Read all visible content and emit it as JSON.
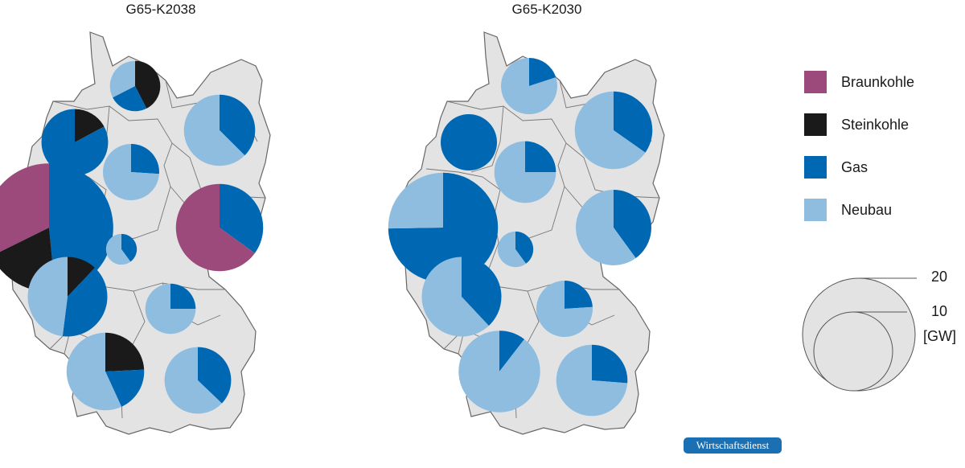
{
  "maps": [
    {
      "title": "G65-K2038",
      "pies": [
        {
          "region": "Schleswig-Holstein",
          "total": 4,
          "slices": [
            {
              "c": "Steinkohle",
              "v": 1.7
            },
            {
              "c": "Gas",
              "v": 1.0
            },
            {
              "c": "Neubau",
              "v": 1.3
            }
          ]
        },
        {
          "region": "Niedersachsen-Nord",
          "total": 7,
          "slices": [
            {
              "c": "Steinkohle",
              "v": 1.2
            },
            {
              "c": "Gas",
              "v": 5.8
            }
          ]
        },
        {
          "region": "Mecklenburg/Brandenburg-Nord",
          "total": 8,
          "slices": [
            {
              "c": "Gas",
              "v": 3.0
            },
            {
              "c": "Neubau",
              "v": 5.0
            }
          ]
        },
        {
          "region": "Niedersachsen-Süd",
          "total": 5,
          "slices": [
            {
              "c": "Gas",
              "v": 1.3
            },
            {
              "c": "Neubau",
              "v": 3.7
            }
          ]
        },
        {
          "region": "Nordrhein-Westfalen",
          "total": 26,
          "slices": [
            {
              "c": "Gas",
              "v": 12.6
            },
            {
              "c": "Steinkohle",
              "v": 5.0
            },
            {
              "c": "Braunkohle",
              "v": 8.4
            }
          ]
        },
        {
          "region": "Sachsen/Lausitz",
          "total": 12,
          "slices": [
            {
              "c": "Gas",
              "v": 4.2
            },
            {
              "c": "Braunkohle",
              "v": 7.8
            }
          ]
        },
        {
          "region": "Hessen",
          "total": 1.5,
          "slices": [
            {
              "c": "Gas",
              "v": 0.6
            },
            {
              "c": "Neubau",
              "v": 0.9
            }
          ]
        },
        {
          "region": "Rheinland-Pfalz/Saar",
          "total": 10,
          "slices": [
            {
              "c": "Steinkohle",
              "v": 1.2
            },
            {
              "c": "Gas",
              "v": 4.0
            },
            {
              "c": "Neubau",
              "v": 4.8
            }
          ]
        },
        {
          "region": "Franken",
          "total": 4,
          "slices": [
            {
              "c": "Gas",
              "v": 1.0
            },
            {
              "c": "Neubau",
              "v": 3.0
            }
          ]
        },
        {
          "region": "Baden-Württemberg",
          "total": 9.5,
          "slices": [
            {
              "c": "Steinkohle",
              "v": 2.3
            },
            {
              "c": "Gas",
              "v": 1.8
            },
            {
              "c": "Neubau",
              "v": 5.4
            }
          ]
        },
        {
          "region": "Bayern-Süd",
          "total": 7,
          "slices": [
            {
              "c": "Gas",
              "v": 2.6
            },
            {
              "c": "Neubau",
              "v": 4.4
            }
          ]
        }
      ]
    },
    {
      "title": "G65-K2030",
      "pies": [
        {
          "region": "Schleswig-Holstein",
          "total": 5,
          "slices": [
            {
              "c": "Gas",
              "v": 1.0
            },
            {
              "c": "Neubau",
              "v": 4.0
            }
          ]
        },
        {
          "region": "Niedersachsen-Nord",
          "total": 5,
          "slices": [
            {
              "c": "Gas",
              "v": 5.0
            }
          ]
        },
        {
          "region": "Mecklenburg/Brandenburg-Nord",
          "total": 9.5,
          "slices": [
            {
              "c": "Gas",
              "v": 3.3
            },
            {
              "c": "Neubau",
              "v": 6.2
            }
          ]
        },
        {
          "region": "Niedersachsen-Süd",
          "total": 6,
          "slices": [
            {
              "c": "Gas",
              "v": 1.5
            },
            {
              "c": "Neubau",
              "v": 4.5
            }
          ]
        },
        {
          "region": "Nordrhein-Westfalen",
          "total": 19,
          "slices": [
            {
              "c": "Gas",
              "v": 14.2
            },
            {
              "c": "Neubau",
              "v": 4.8
            }
          ]
        },
        {
          "region": "Sachsen/Lausitz",
          "total": 9,
          "slices": [
            {
              "c": "Gas",
              "v": 3.6
            },
            {
              "c": "Neubau",
              "v": 5.4
            }
          ]
        },
        {
          "region": "Hessen",
          "total": 2,
          "slices": [
            {
              "c": "Gas",
              "v": 0.8
            },
            {
              "c": "Neubau",
              "v": 1.2
            }
          ]
        },
        {
          "region": "Rheinland-Pfalz/Saar",
          "total": 10,
          "slices": [
            {
              "c": "Gas",
              "v": 3.8
            },
            {
              "c": "Neubau",
              "v": 6.2
            }
          ]
        },
        {
          "region": "Franken",
          "total": 5,
          "slices": [
            {
              "c": "Gas",
              "v": 1.2
            },
            {
              "c": "Neubau",
              "v": 3.8
            }
          ]
        },
        {
          "region": "Baden-Württemberg",
          "total": 10.5,
          "slices": [
            {
              "c": "Gas",
              "v": 1.1
            },
            {
              "c": "Neubau",
              "v": 9.4
            }
          ]
        },
        {
          "region": "Bayern-Süd",
          "total": 8,
          "slices": [
            {
              "c": "Gas",
              "v": 2.1
            },
            {
              "c": "Neubau",
              "v": 5.9
            }
          ]
        }
      ]
    }
  ],
  "legend": [
    {
      "label": "Braunkohle",
      "color": "#9b4a7b"
    },
    {
      "label": "Steinkohle",
      "color": "#1a1a1a"
    },
    {
      "label": "Gas",
      "color": "#0068b3"
    },
    {
      "label": "Neubau",
      "color": "#8fbde0"
    }
  ],
  "size_legend": {
    "large": "20",
    "small": "10",
    "unit": "[GW]"
  },
  "badge": "Wirtschaftsdienst",
  "colors": {
    "land": "#e3e3e3",
    "border": "#666666"
  }
}
